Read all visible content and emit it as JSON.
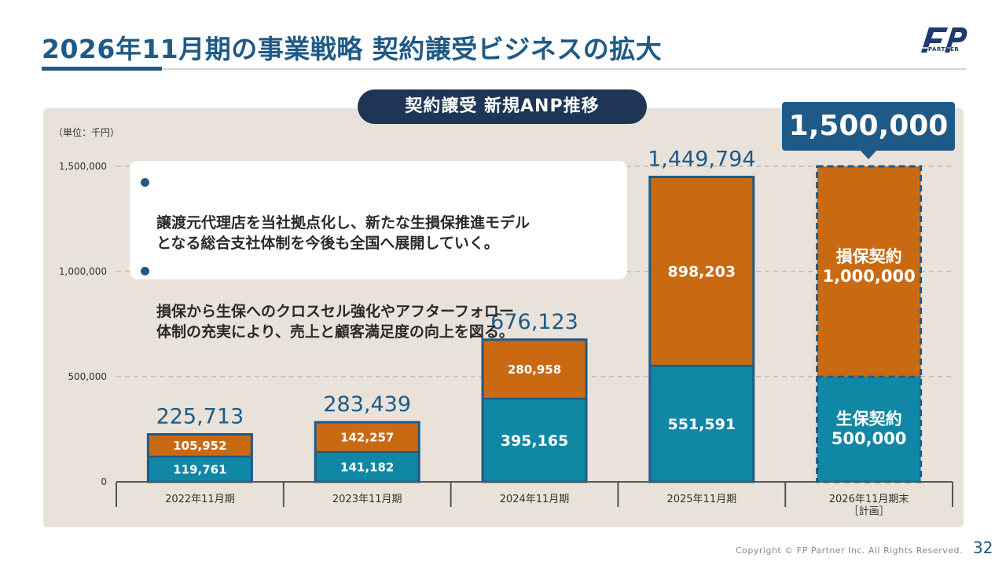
{
  "header": {
    "title": "2026年11月期の事業戦略  契約譲受ビジネスの拡大",
    "logo_text": "PARTNER"
  },
  "chart_title": "契約譲受 新規ANP推移",
  "callout": {
    "items": [
      "譲渡元代理店を当社拠点化し、新たな生損保推進モデル\nとなる総合支社体制を今後も全国へ展開していく。",
      "損保から生保へのクロスセル強化やアフターフォロー\n体制の充実により、売上と顧客満足度の向上を図る。"
    ]
  },
  "plan_badge": "1,500,000",
  "footer": {
    "copyright": "Copyright © FP Partner Inc. All Rights Reserved.",
    "page_number": "32"
  },
  "colors": {
    "life": "#0f87a5",
    "nonlife": "#c96a12",
    "border": "#1f5a86",
    "panel": "#e8e2da"
  },
  "chart_data": {
    "type": "bar",
    "stacked": true,
    "unit_label": "（単位：千円）",
    "categories": [
      "2022年11月期",
      "2023年11月期",
      "2024年11月期",
      "2025年11月期",
      "2026年11月期末\n［計画］"
    ],
    "series": [
      {
        "name": "生保契約",
        "values": [
          119761,
          141182,
          395165,
          551591,
          500000
        ],
        "labels": [
          "119,761",
          "141,182",
          "395,165",
          "551,591",
          "生保契約\n500,000"
        ]
      },
      {
        "name": "損保契約",
        "values": [
          105952,
          142257,
          280958,
          898203,
          1000000
        ],
        "labels": [
          "105,952",
          "142,257",
          "280,958",
          "898,203",
          "損保契約\n1,000,000"
        ]
      }
    ],
    "totals": [
      "225,713",
      "283,439",
      "676,123",
      "1,449,794",
      ""
    ],
    "planned_index": 4,
    "y_ticks": [
      0,
      500000,
      1000000,
      1500000
    ],
    "y_tick_labels": [
      "0",
      "500,000",
      "1,000,000",
      "1,500,000"
    ],
    "ylim": [
      0,
      1500000
    ],
    "grid": true
  }
}
